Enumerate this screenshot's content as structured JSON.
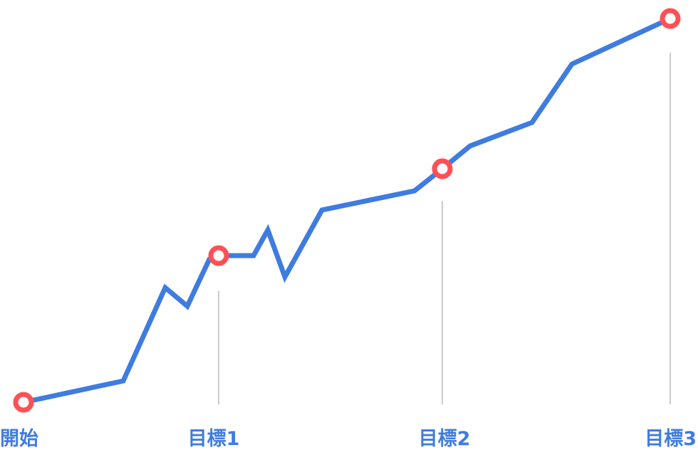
{
  "milestones": [
    {
      "label": "開始"
    },
    {
      "label": "目標1"
    },
    {
      "label": "目標2"
    },
    {
      "label": "目標3"
    }
  ],
  "colors": {
    "path": "#3f7ce0",
    "marker_ring": "#ff5056",
    "marker_fill": "#ffffff",
    "guide_line": "#cccccc",
    "label": "#3f7ce0"
  }
}
